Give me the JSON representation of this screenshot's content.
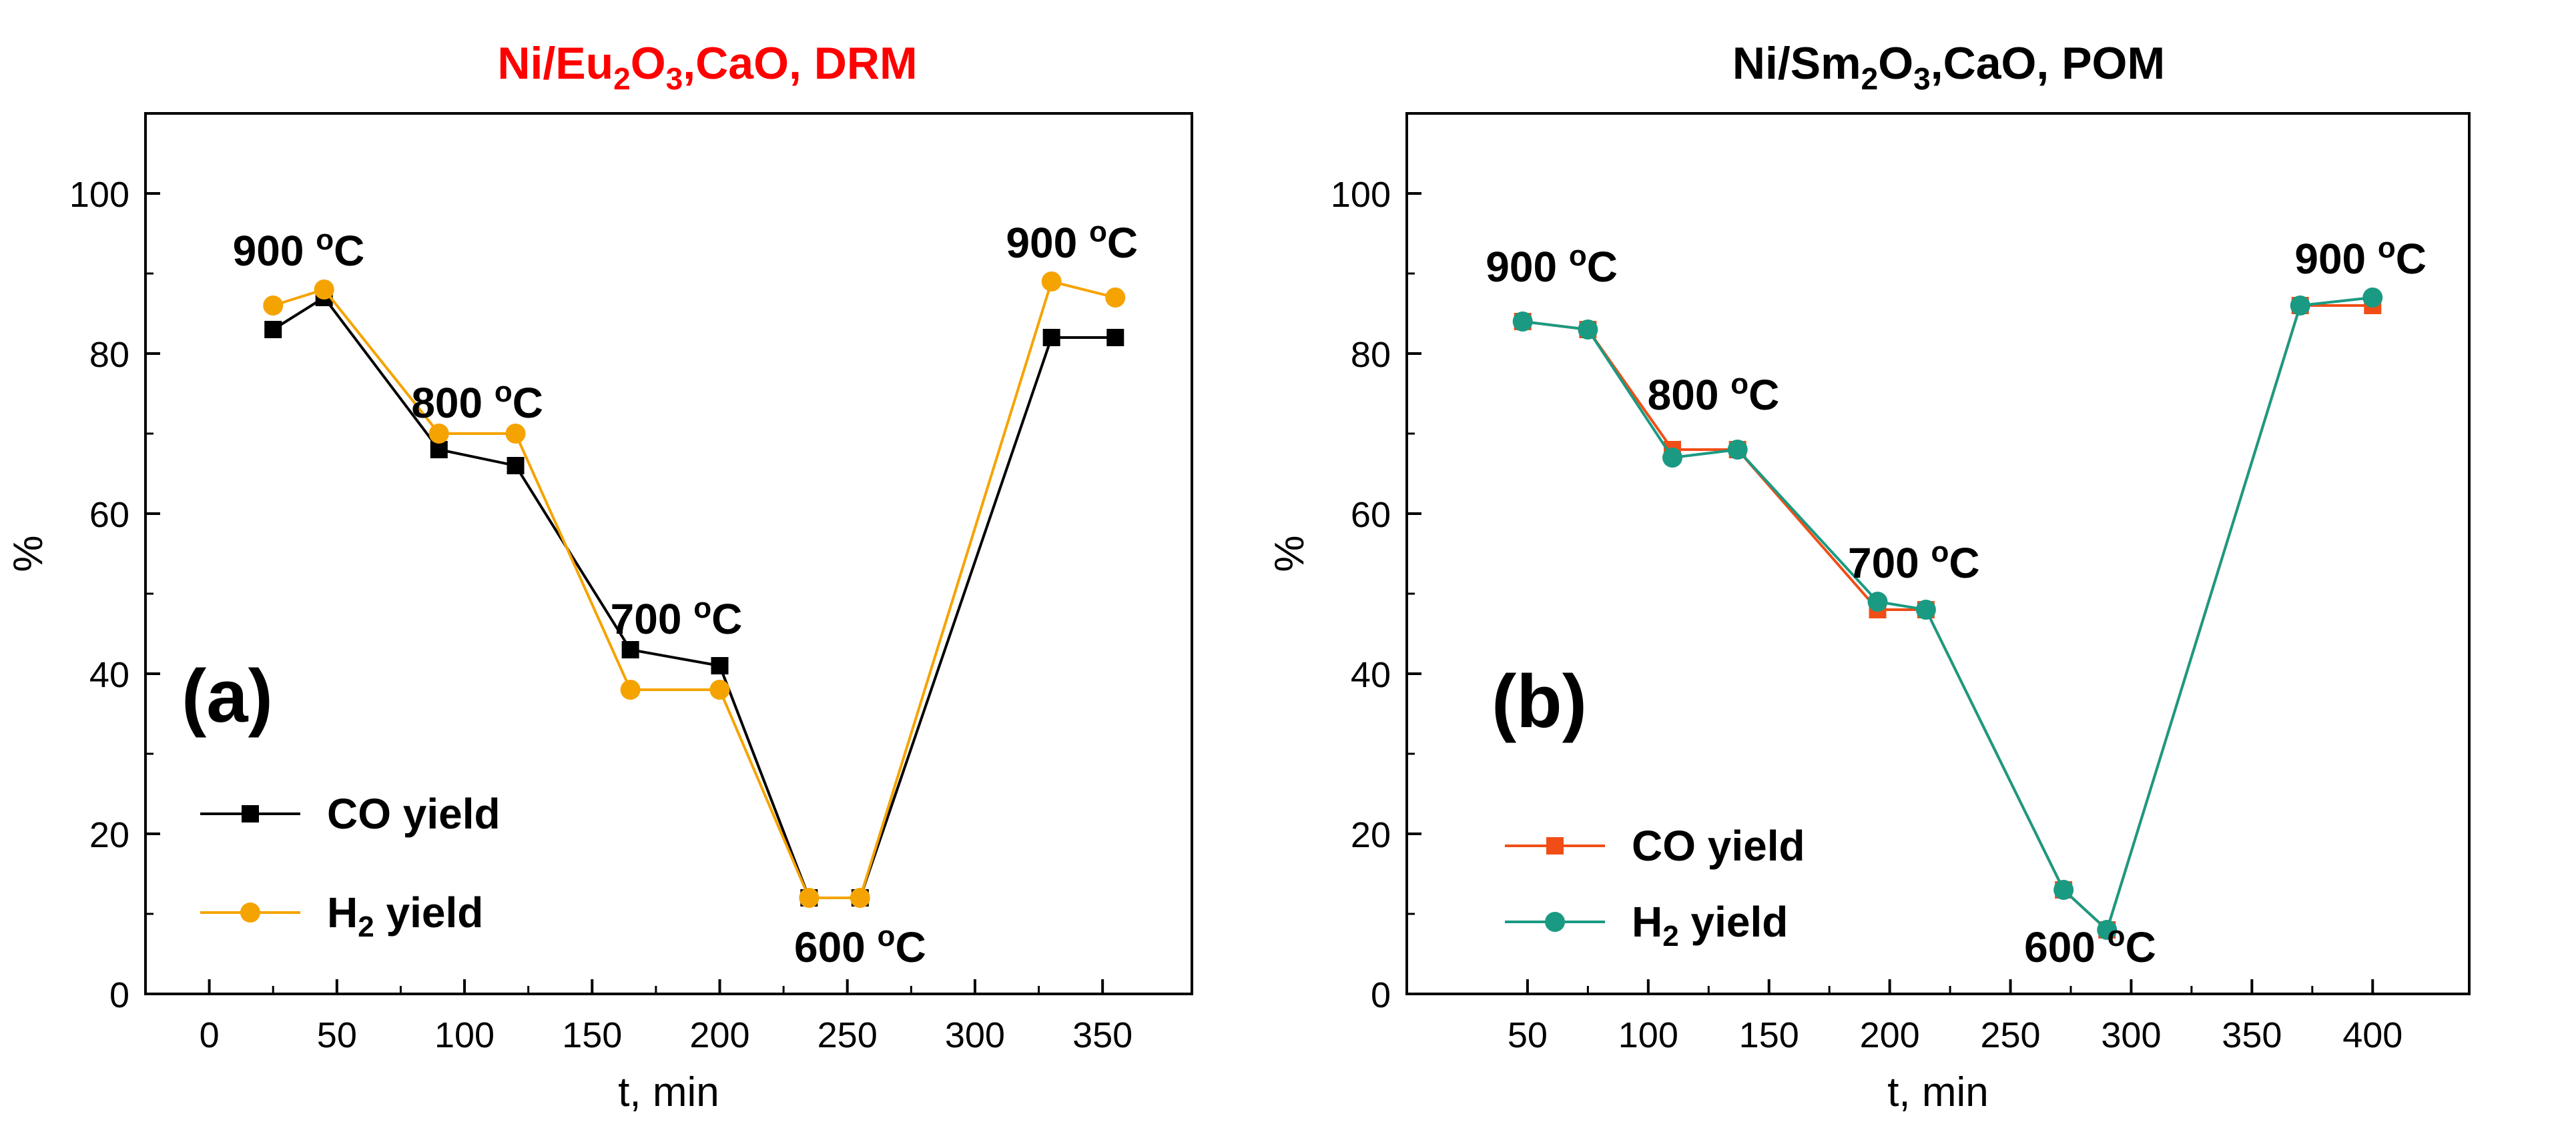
{
  "colors": {
    "axis": "#000000",
    "title_a": "#ff0000",
    "title_b": "#000000",
    "co_a": "#000000",
    "h2_a": "#f5a300",
    "co_b": "#f04e16",
    "h2_b": "#1a9a82"
  },
  "chart_data": [
    {
      "type": "line",
      "panel_label": "(a)",
      "title": {
        "pre": "Ni/Eu",
        "sub1": "2",
        "mid": "O",
        "sub2": "3",
        "post": ",CaO, DRM"
      },
      "xlabel": "t, min",
      "ylabel": "%",
      "xlim": [
        -25,
        385
      ],
      "ylim": [
        0,
        110
      ],
      "xticks": [
        0,
        50,
        100,
        150,
        200,
        250,
        300,
        350
      ],
      "yticks": [
        0,
        20,
        40,
        60,
        80,
        100
      ],
      "series": [
        {
          "name": "CO yield",
          "marker": "square",
          "x": [
            25,
            45,
            90,
            120,
            165,
            200,
            235,
            255,
            330,
            355
          ],
          "y": [
            83,
            87,
            68,
            66,
            43,
            41,
            12,
            12,
            82,
            82
          ]
        },
        {
          "name": "H2 yield",
          "marker": "circle",
          "x": [
            25,
            45,
            90,
            120,
            165,
            200,
            235,
            255,
            330,
            355
          ],
          "y": [
            86,
            88,
            70,
            70,
            38,
            38,
            12,
            12,
            89,
            87
          ]
        }
      ],
      "legend": [
        {
          "text": "CO yield",
          "sub": ""
        },
        {
          "pre": "H",
          "sub": "2",
          "post": " yield"
        }
      ],
      "annotations": [
        {
          "base": "900 ",
          "sup": "o",
          "unit": "C",
          "x": 35,
          "y": 91
        },
        {
          "base": "800 ",
          "sup": "o",
          "unit": "C",
          "x": 105,
          "y": 72
        },
        {
          "base": "700 ",
          "sup": "o",
          "unit": "C",
          "x": 183,
          "y": 45
        },
        {
          "base": "600 ",
          "sup": "o",
          "unit": "C",
          "x": 255,
          "y": 4
        },
        {
          "base": "900 ",
          "sup": "o",
          "unit": "C",
          "x": 338,
          "y": 92
        }
      ]
    },
    {
      "type": "line",
      "panel_label": "(b)",
      "title": {
        "pre": "Ni/Sm",
        "sub1": "2",
        "mid": "O",
        "sub2": "3",
        "post": ",CaO, POM"
      },
      "xlabel": "t, min",
      "ylabel": "%",
      "xlim": [
        0,
        440
      ],
      "ylim": [
        0,
        110
      ],
      "xticks": [
        50,
        100,
        150,
        200,
        250,
        300,
        350,
        400
      ],
      "yticks": [
        0,
        20,
        40,
        60,
        80,
        100
      ],
      "series": [
        {
          "name": "CO yield",
          "marker": "square",
          "x": [
            48,
            75,
            110,
            137,
            195,
            215,
            272,
            290,
            370,
            400
          ],
          "y": [
            84,
            83,
            68,
            68,
            48,
            48,
            13,
            8,
            86,
            86
          ]
        },
        {
          "name": "H2 yield",
          "marker": "circle",
          "x": [
            48,
            75,
            110,
            137,
            195,
            215,
            272,
            290,
            370,
            400
          ],
          "y": [
            84,
            83,
            67,
            68,
            49,
            48,
            13,
            8,
            86,
            87
          ]
        }
      ],
      "legend": [
        {
          "text": "CO yield",
          "sub": ""
        },
        {
          "pre": "H",
          "sub": "2",
          "post": " yield"
        }
      ],
      "annotations": [
        {
          "base": "900 ",
          "sup": "o",
          "unit": "C",
          "x": 60,
          "y": 89
        },
        {
          "base": "800 ",
          "sup": "o",
          "unit": "C",
          "x": 127,
          "y": 73
        },
        {
          "base": "700 ",
          "sup": "o",
          "unit": "C",
          "x": 210,
          "y": 52
        },
        {
          "base": "600 ",
          "sup": "o",
          "unit": "C",
          "x": 283,
          "y": 4
        },
        {
          "base": "900 ",
          "sup": "o",
          "unit": "C",
          "x": 395,
          "y": 90
        }
      ]
    }
  ]
}
